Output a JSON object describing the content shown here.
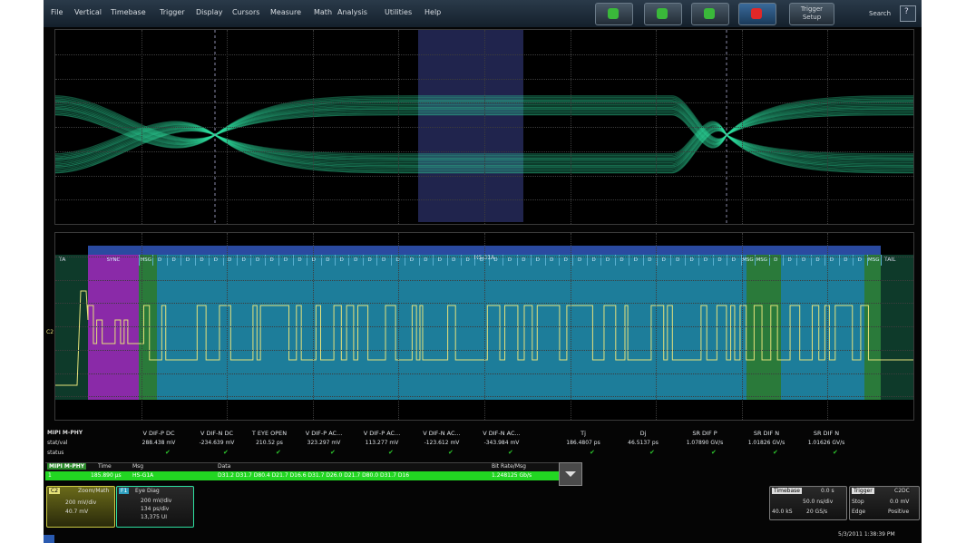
{
  "menu": [
    "File",
    "Vertical",
    "Timebase",
    "Trigger",
    "Display",
    "Cursors",
    "Measure",
    "Math",
    "Analysis",
    "Utilities",
    "Help"
  ],
  "toolbar": {
    "trigger_setup": [
      "Trigger",
      "Setup"
    ],
    "search_label": "Search"
  },
  "decode": {
    "header": "HS-01A",
    "left_tail": "TA",
    "right_tail": "TAIL",
    "segments": [
      "SYNC",
      "MSG",
      "D",
      "D",
      "D",
      "D",
      "D",
      "D",
      "D",
      "D",
      "D",
      "D",
      "D",
      "D",
      "D",
      "D",
      "D",
      "D",
      "D",
      "D",
      "D",
      "D",
      "D",
      "D",
      "D",
      "D",
      "D",
      "D",
      "D",
      "D",
      "D",
      "D",
      "D",
      "D",
      "D",
      "D",
      "D",
      "D",
      "D",
      "D",
      "D",
      "D",
      "D",
      "D",
      "MSG",
      "MSG",
      "D",
      "D",
      "D",
      "D",
      "D",
      "D",
      "D",
      "MSG"
    ],
    "channel_marker": "C2"
  },
  "measure": {
    "row_labels": [
      "MIPI M-PHY",
      "stat/val",
      "status"
    ],
    "columns": [
      {
        "name": "V DIF-P DC",
        "value": "288.438 mV"
      },
      {
        "name": "V DIF-N DC",
        "value": "-234.639 mV"
      },
      {
        "name": "T EYE OPEN",
        "value": "210.52 ps"
      },
      {
        "name": "V DIF-P AC...",
        "value": "323.297 mV"
      },
      {
        "name": "V DIF-P AC...",
        "value": "113.277 mV"
      },
      {
        "name": "V DIF-N AC...",
        "value": "-123.612 mV"
      },
      {
        "name": "V DIF-N AC...",
        "value": "-343.984 mV"
      },
      {
        "name": "Tj",
        "value": "186.4807 ps"
      },
      {
        "name": "Dj",
        "value": "46.5137 ps"
      },
      {
        "name": "SR DIF P",
        "value": "1.07890 GV/s"
      },
      {
        "name": "SR DIF N",
        "value": "1.01826 GV/s"
      },
      {
        "name": "SR DIF N",
        "value": "1.01626 GV/s"
      }
    ]
  },
  "decode_table": {
    "headers": [
      "MIPI M-PHY",
      "Time",
      "Msg",
      "Data",
      "Bit Rate/Msg"
    ],
    "row": {
      "index": "1",
      "time": "185.890 µs",
      "msg": "HS-G1A",
      "data": "D31.2 D31.7 D80.4 D21.7 D16.6 D31.7 D26.0 D21.7 D80.0 D31.7 D16",
      "bitrate": "1.248125 Gb/s"
    }
  },
  "channels": {
    "c2": {
      "name": "C2",
      "label": "Zoom/Math",
      "lines": [
        "200 mV/div",
        "40.7 mV"
      ]
    },
    "f1": {
      "name": "F1",
      "label": "Eye Diag",
      "lines": [
        "200 mV/div",
        "134 ps/div",
        "13,375 UI"
      ]
    }
  },
  "timebase": {
    "title": "Timebase",
    "value": "0.0 s",
    "rows": [
      [
        "",
        "50.0 ns/div"
      ],
      [
        "40.0 kS",
        "20 GS/s"
      ]
    ]
  },
  "trigger": {
    "title": "Trigger",
    "value": "C2DC",
    "rows": [
      [
        "Stop",
        "0.0 mV"
      ],
      [
        "Edge",
        "Positive"
      ]
    ]
  },
  "timestamp": "5/3/2011 1:38:39 PM",
  "colors": {
    "eye": "#2ee0a0",
    "decode_bg": "#1d7d9a",
    "sync": "#8a2aa8",
    "msg": "#2a7a3a",
    "trace": "#e6e27a",
    "status_bar": "#22d622"
  }
}
